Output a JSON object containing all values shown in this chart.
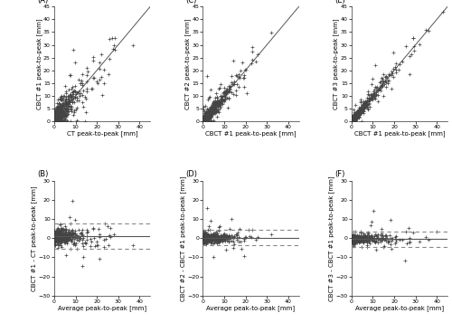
{
  "panels": {
    "A": {
      "label": "(A)",
      "xlabel": "CT peak-to-peak [mm]",
      "ylabel": "CBCT #1 peak-to-peak [mm]",
      "xlim": [
        0,
        45
      ],
      "ylim": [
        0,
        45
      ],
      "xticks": [
        0,
        10,
        20,
        30,
        40
      ],
      "yticks": [
        0,
        5,
        10,
        15,
        20,
        25,
        30,
        35,
        40,
        45
      ],
      "identity_line": true
    },
    "C": {
      "label": "(C)",
      "xlabel": "CBCT #1 peak-to-peak [mm]",
      "ylabel": "CBCT #2 peak-to-peak [mm]",
      "xlim": [
        0,
        45
      ],
      "ylim": [
        0,
        45
      ],
      "xticks": [
        0,
        10,
        20,
        30,
        40
      ],
      "yticks": [
        0,
        5,
        10,
        15,
        20,
        25,
        30,
        35,
        40,
        45
      ],
      "identity_line": true
    },
    "E": {
      "label": "(E)",
      "xlabel": "CBCT #1 peak-to-peak [mm]",
      "ylabel": "CBCT #3 peak-to-peak [mm]",
      "xlim": [
        0,
        45
      ],
      "ylim": [
        0,
        45
      ],
      "xticks": [
        0,
        10,
        20,
        30,
        40
      ],
      "yticks": [
        0,
        5,
        10,
        15,
        20,
        25,
        30,
        35,
        40,
        45
      ],
      "identity_line": true
    },
    "B": {
      "label": "(B)",
      "xlabel": "Average peak-to-peak [mm]",
      "ylabel": "CBCT #1 - CT peak-to-peak [mm]",
      "xlim": [
        0,
        45
      ],
      "ylim": [
        -30,
        30
      ],
      "xticks": [
        0,
        10,
        20,
        30,
        40
      ],
      "yticks": [
        -30,
        -20,
        -10,
        0,
        10,
        20,
        30
      ],
      "mean": 1.0,
      "upper_sd": 7.5,
      "lower_sd": -5.5
    },
    "D": {
      "label": "(D)",
      "xlabel": "Average peak-to-peak [mm]",
      "ylabel": "CBCT #2 - CBCT #1 peak-to-peak [mm]",
      "xlim": [
        0,
        45
      ],
      "ylim": [
        -30,
        30
      ],
      "xticks": [
        0,
        10,
        20,
        30,
        40
      ],
      "yticks": [
        -30,
        -20,
        -10,
        0,
        10,
        20,
        30
      ],
      "mean": 0.3,
      "upper_sd": 4.5,
      "lower_sd": -3.8
    },
    "F": {
      "label": "(F)",
      "xlabel": "Average peak-to-peak [mm]",
      "ylabel": "CBCT #3 - CBCT #1 peak-to-peak [mm]",
      "xlim": [
        0,
        45
      ],
      "ylim": [
        -30,
        30
      ],
      "xticks": [
        0,
        10,
        20,
        30,
        40
      ],
      "yticks": [
        -30,
        -20,
        -10,
        0,
        10,
        20,
        30
      ],
      "mean": -0.3,
      "upper_sd": 3.5,
      "lower_sd": -4.5
    }
  },
  "marker": "+",
  "markersize": 2.5,
  "markeredgewidth": 0.5,
  "marker_color": "#444444",
  "mean_line_color": "#555555",
  "dashed_line_color": "#888888",
  "identity_line_color": "#555555",
  "label_fontsize": 5.0,
  "tick_fontsize": 4.5,
  "panel_label_fontsize": 6.0,
  "figsize": [
    5.0,
    3.67
  ],
  "dpi": 100
}
